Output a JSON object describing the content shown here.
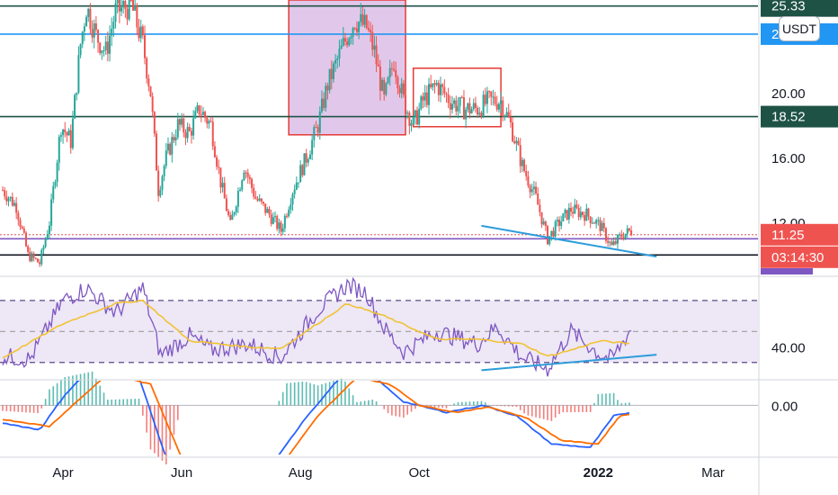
{
  "currency": "USDT",
  "colors": {
    "up": "#26a69a",
    "down": "#ef5350",
    "rect_fill": "#e1c8ea",
    "rect_stroke": "#e53935",
    "hline_dark": "#1e5245",
    "hline_blue": "#2196f3",
    "trend_blue": "#2d9cdb",
    "rsi_line": "#7e57c2",
    "rsi_ma": "#f2c232",
    "rsi_band": "#ede7f6",
    "macd_line": "#2962ff",
    "signal_line": "#ff6d00"
  },
  "price_axis": {
    "ticks": [
      "16.00",
      "20.00",
      "12.00"
    ],
    "tags": [
      {
        "label": "25.33",
        "color": "#1e5245"
      },
      {
        "label": "2",
        "color": "#2196f3"
      },
      {
        "label": "18.52",
        "color": "#1e5245"
      },
      {
        "label": "11.25",
        "color": "#ef5350"
      },
      {
        "label": "03:14:30",
        "color": "#ef5350"
      }
    ]
  },
  "rsi_axis": {
    "ticks": [
      "40.00"
    ]
  },
  "macd_axis": {
    "ticks": [
      "0.00"
    ]
  },
  "time_axis": {
    "labels": [
      "Apr",
      "Jun",
      "Aug",
      "Oct",
      "2022",
      "Mar"
    ]
  },
  "chart_data": [
    {
      "type": "candlestick",
      "pane": "price",
      "x_range": [
        "2021-03",
        "2022-03"
      ],
      "ylim": [
        8.8,
        25.7
      ],
      "path": [
        [
          "2021-03-01",
          14.0
        ],
        [
          "2021-03-08",
          13.0
        ],
        [
          "2021-03-14",
          10.0
        ],
        [
          "2021-03-20",
          9.5
        ],
        [
          "2021-03-25",
          12.0
        ],
        [
          "2021-03-31",
          18.0
        ],
        [
          "2021-04-05",
          17.0
        ],
        [
          "2021-04-10",
          23.0
        ],
        [
          "2021-04-13",
          25.3
        ],
        [
          "2021-04-18",
          23.5
        ],
        [
          "2021-04-23",
          22.5
        ],
        [
          "2021-04-28",
          25.0
        ],
        [
          "2021-05-06",
          25.4
        ],
        [
          "2021-05-12",
          23.0
        ],
        [
          "2021-05-16",
          20.0
        ],
        [
          "2021-05-20",
          14.0
        ],
        [
          "2021-05-24",
          16.0
        ],
        [
          "2021-05-30",
          18.0
        ],
        [
          "2021-06-05",
          17.5
        ],
        [
          "2021-06-10",
          19.0
        ],
        [
          "2021-06-16",
          18.0
        ],
        [
          "2021-06-21",
          14.5
        ],
        [
          "2021-06-26",
          11.8
        ],
        [
          "2021-07-03",
          15.5
        ],
        [
          "2021-07-09",
          13.5
        ],
        [
          "2021-07-16",
          12.5
        ],
        [
          "2021-07-22",
          11.5
        ],
        [
          "2021-07-28",
          14.0
        ],
        [
          "2021-08-04",
          16.0
        ],
        [
          "2021-08-10",
          18.0
        ],
        [
          "2021-08-15",
          20.5
        ],
        [
          "2021-08-20",
          22.0
        ],
        [
          "2021-08-25",
          23.5
        ],
        [
          "2021-08-29",
          24.5
        ],
        [
          "2021-09-04",
          24.0
        ],
        [
          "2021-09-08",
          22.5
        ],
        [
          "2021-09-13",
          19.5
        ],
        [
          "2021-09-18",
          22.0
        ],
        [
          "2021-09-23",
          19.5
        ],
        [
          "2021-09-28",
          18.0
        ],
        [
          "2021-10-03",
          19.5
        ],
        [
          "2021-10-10",
          20.5
        ],
        [
          "2021-10-17",
          19.5
        ],
        [
          "2021-10-24",
          19.0
        ],
        [
          "2021-10-31",
          19.0
        ],
        [
          "2021-11-06",
          19.5
        ],
        [
          "2021-11-12",
          19.5
        ],
        [
          "2021-11-17",
          18.0
        ],
        [
          "2021-11-23",
          15.5
        ],
        [
          "2021-11-30",
          13.5
        ],
        [
          "2021-12-06",
          11.0
        ],
        [
          "2021-12-12",
          12.0
        ],
        [
          "2021-12-18",
          12.8
        ],
        [
          "2021-12-26",
          12.5
        ],
        [
          "2022-01-02",
          11.8
        ],
        [
          "2022-01-08",
          10.5
        ],
        [
          "2022-01-13",
          11.2
        ],
        [
          "2022-01-18",
          11.5
        ]
      ],
      "rectangles": [
        {
          "start": "2021-07-26",
          "end": "2021-09-24",
          "low": 17.4,
          "high": 25.7,
          "fill": true
        },
        {
          "start": "2021-09-28",
          "end": "2021-11-12",
          "low": 17.9,
          "high": 21.5,
          "fill": false
        }
      ],
      "horizontal_lines": [
        {
          "y": 25.33,
          "color": "#1e5245"
        },
        {
          "y": 23.6,
          "color": "#2196f3"
        },
        {
          "y": 18.52,
          "color": "#1e5245"
        },
        {
          "y": 11.25,
          "color": "#e57373",
          "dotted": true
        },
        {
          "y": 11.0,
          "color": "#7e57c2"
        },
        {
          "y": 10.0,
          "color": "#131722"
        }
      ],
      "trendlines": [
        {
          "x1": "2021-11-02",
          "y1": 11.8,
          "x2": "2022-01-31",
          "y2": 9.9
        }
      ]
    },
    {
      "type": "line",
      "pane": "rsi",
      "ylim": [
        20,
        85
      ],
      "bands": [
        70,
        50,
        30
      ],
      "series": [
        {
          "path": [
            [
              "2021-03-01",
              34
            ],
            [
              "2021-03-15",
              32
            ],
            [
              "2021-04-01",
              70
            ],
            [
              "2021-04-13",
              78
            ],
            [
              "2021-04-28",
              62
            ],
            [
              "2021-05-12",
              78
            ],
            [
              "2021-05-21",
              35
            ],
            [
              "2021-06-05",
              47
            ],
            [
              "2021-06-16",
              38
            ],
            [
              "2021-07-05",
              42
            ],
            [
              "2021-07-22",
              33
            ],
            [
              "2021-08-10",
              64
            ],
            [
              "2021-08-25",
              80
            ],
            [
              "2021-09-04",
              75
            ],
            [
              "2021-09-13",
              52
            ],
            [
              "2021-09-23",
              37
            ],
            [
              "2021-10-10",
              50
            ],
            [
              "2021-10-31",
              42
            ],
            [
              "2021-11-10",
              53
            ],
            [
              "2021-11-23",
              33
            ],
            [
              "2021-12-06",
              26
            ],
            [
              "2021-12-18",
              50
            ],
            [
              "2022-01-02",
              35
            ],
            [
              "2022-01-08",
              32
            ],
            [
              "2022-01-18",
              52
            ]
          ]
        },
        {
          "path": [
            [
              "2021-03-01",
              33
            ],
            [
              "2021-04-01",
              55
            ],
            [
              "2021-04-28",
              68
            ],
            [
              "2021-05-12",
              70
            ],
            [
              "2021-06-05",
              44
            ],
            [
              "2021-07-05",
              40
            ],
            [
              "2021-07-22",
              39
            ],
            [
              "2021-08-25",
              68
            ],
            [
              "2021-09-13",
              60
            ],
            [
              "2021-10-10",
              45
            ],
            [
              "2021-10-31",
              45
            ],
            [
              "2021-11-23",
              42
            ],
            [
              "2021-12-06",
              34
            ],
            [
              "2021-12-18",
              38
            ],
            [
              "2022-01-02",
              44
            ],
            [
              "2022-01-18",
              42
            ]
          ]
        }
      ],
      "trendlines": [
        {
          "x1": "2021-11-02",
          "y1": 25,
          "x2": "2022-01-31",
          "y2": 35
        }
      ]
    },
    {
      "type": "line",
      "pane": "macd",
      "ylim": [
        -1.4,
        0.7
      ],
      "zero": 0,
      "series": [
        {
          "path": [
            [
              "2021-03-01",
              -0.5
            ],
            [
              "2021-03-20",
              -0.7
            ],
            [
              "2021-04-02",
              0.3
            ],
            [
              "2021-04-16",
              1.1
            ],
            [
              "2021-05-10",
              0.8
            ],
            [
              "2021-05-24",
              -1.5
            ],
            [
              "2021-06-16",
              -1.5
            ],
            [
              "2021-07-20",
              -1.5
            ],
            [
              "2021-08-03",
              -0.4
            ],
            [
              "2021-08-23",
              0.9
            ],
            [
              "2021-09-08",
              0.8
            ],
            [
              "2021-09-23",
              0.1
            ],
            [
              "2021-10-15",
              -0.2
            ],
            [
              "2021-11-03",
              0.0
            ],
            [
              "2021-11-20",
              -0.3
            ],
            [
              "2021-12-08",
              -1.1
            ],
            [
              "2021-12-28",
              -1.2
            ],
            [
              "2022-01-09",
              -0.3
            ],
            [
              "2022-01-18",
              -0.2
            ]
          ]
        },
        {
          "path": [
            [
              "2021-03-01",
              -0.4
            ],
            [
              "2021-03-25",
              -0.6
            ],
            [
              "2021-04-10",
              0.2
            ],
            [
              "2021-04-24",
              0.9
            ],
            [
              "2021-05-16",
              0.6
            ],
            [
              "2021-06-01",
              -1.5
            ],
            [
              "2021-07-25",
              -1.5
            ],
            [
              "2021-08-10",
              -0.3
            ],
            [
              "2021-08-30",
              0.8
            ],
            [
              "2021-09-16",
              0.6
            ],
            [
              "2021-10-01",
              0.0
            ],
            [
              "2021-10-20",
              -0.2
            ],
            [
              "2021-11-06",
              -0.05
            ],
            [
              "2021-11-25",
              -0.35
            ],
            [
              "2021-12-13",
              -1.0
            ],
            [
              "2022-01-01",
              -1.1
            ],
            [
              "2022-01-12",
              -0.3
            ],
            [
              "2022-01-18",
              -0.25
            ]
          ]
        }
      ],
      "histogram_sample_interval_days": 2
    }
  ]
}
